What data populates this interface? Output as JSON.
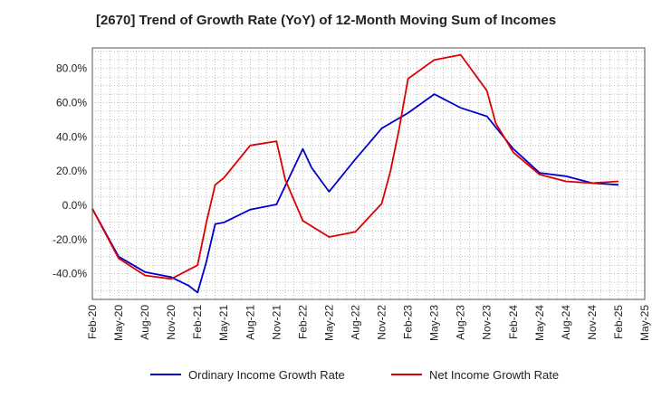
{
  "chart_data": {
    "type": "line",
    "title": "[2670]  Trend of Growth Rate (YoY) of 12-Month Moving Sum of Incomes",
    "xlabel": "",
    "ylabel": "",
    "x": [
      "Feb-20",
      "May-20",
      "Aug-20",
      "Nov-20",
      "Feb-21",
      "May-21",
      "Aug-21",
      "Nov-21",
      "Feb-22",
      "May-22",
      "Aug-22",
      "Nov-22",
      "Feb-23",
      "May-23",
      "Aug-23",
      "Nov-23",
      "Feb-24",
      "May-24",
      "Aug-24",
      "Nov-24",
      "Feb-25",
      "May-25"
    ],
    "x_tick_labels": [
      "Feb-20",
      "May-20",
      "Aug-20",
      "Nov-20",
      "Feb-21",
      "May-21",
      "Aug-21",
      "Nov-21",
      "Feb-22",
      "May-22",
      "Aug-22",
      "Nov-22",
      "Feb-23",
      "May-23",
      "Aug-23",
      "Nov-23",
      "Feb-24",
      "May-24",
      "Aug-24",
      "Nov-24",
      "Feb-25",
      "May-25"
    ],
    "y_ticks": [
      -40,
      -20,
      0,
      20,
      40,
      60,
      80
    ],
    "y_tick_labels": [
      "-40.0%",
      "-20.0%",
      "0.0%",
      "20.0%",
      "40.0%",
      "60.0%",
      "80.0%"
    ],
    "ylim": [
      -55,
      92
    ],
    "grid": true,
    "legend_position": "bottom",
    "series": [
      {
        "name": "Ordinary Income Growth Rate",
        "color": "#0000cc",
        "x": [
          "Feb-20",
          "May-20",
          "Aug-20",
          "Nov-20",
          "Jan-21",
          "Feb-21",
          "Mar-21",
          "Apr-21",
          "May-21",
          "Aug-21",
          "Nov-21",
          "Feb-22",
          "Mar-22",
          "May-22",
          "Aug-22",
          "Nov-22",
          "Feb-23",
          "May-23",
          "Aug-23",
          "Nov-23",
          "Feb-24",
          "May-24",
          "Aug-24",
          "Nov-24",
          "Feb-25"
        ],
        "values": [
          -2,
          -30,
          -39,
          -42,
          -47,
          -51,
          -33,
          -11,
          -10,
          -2.5,
          0.5,
          33,
          22,
          8,
          27,
          45,
          54,
          65,
          57,
          52,
          33,
          19,
          17,
          13,
          12
        ]
      },
      {
        "name": "Net Income Growth Rate",
        "color": "#dd0000",
        "x": [
          "Feb-20",
          "May-20",
          "Aug-20",
          "Nov-20",
          "Feb-21",
          "Mar-21",
          "Apr-21",
          "May-21",
          "Aug-21",
          "Nov-21",
          "Dec-21",
          "Feb-22",
          "May-22",
          "Aug-22",
          "Nov-22",
          "Dec-22",
          "Jan-23",
          "Feb-23",
          "May-23",
          "Aug-23",
          "Nov-23",
          "Dec-23",
          "Feb-24",
          "May-24",
          "Aug-24",
          "Nov-24",
          "Feb-25"
        ],
        "values": [
          -2,
          -31,
          -41,
          -43,
          -35,
          -10,
          12,
          16,
          35,
          37.5,
          15,
          -9,
          -18.5,
          -15.5,
          1,
          20,
          45,
          74,
          85,
          88,
          67,
          48,
          31,
          18,
          14,
          13,
          14
        ]
      }
    ]
  }
}
